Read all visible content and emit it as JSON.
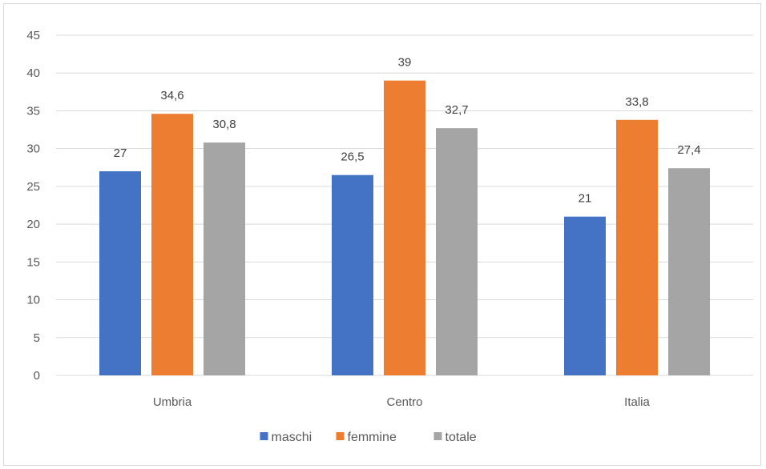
{
  "chart_data": {
    "type": "bar",
    "categories": [
      "Umbria",
      "Centro",
      "Italia"
    ],
    "series": [
      {
        "name": "maschi",
        "values": [
          27,
          26.5,
          21
        ],
        "labels": [
          "27",
          "26,5",
          "21"
        ],
        "color": "#4472C4"
      },
      {
        "name": "femmine",
        "values": [
          34.6,
          39,
          33.8
        ],
        "labels": [
          "34,6",
          "39",
          "33,8"
        ],
        "color": "#ED7D31"
      },
      {
        "name": "totale",
        "values": [
          30.8,
          32.7,
          27.4
        ],
        "labels": [
          "30,8",
          "32,7",
          "27,4"
        ],
        "color": "#A5A5A5"
      }
    ],
    "ylim": [
      0,
      45
    ],
    "yticks": [
      "0",
      "5",
      "10",
      "15",
      "20",
      "25",
      "30",
      "35",
      "40",
      "45"
    ],
    "grid": true,
    "legend_position": "bottom"
  }
}
